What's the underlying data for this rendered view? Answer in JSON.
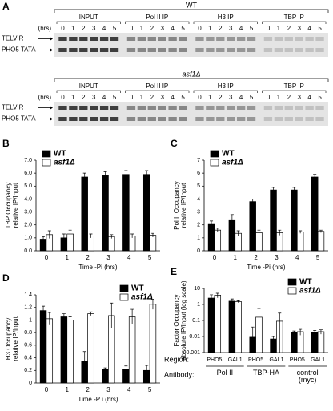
{
  "gels": {
    "panel": "A",
    "time_label": "(hrs)",
    "rows": [
      "TELVIR",
      "PHO5 TATA"
    ],
    "blots": [
      {
        "strain": "WT",
        "groups": [
          {
            "name": "INPUT",
            "lanes": [
              "0",
              "1",
              "2",
              "3",
              "4",
              "5"
            ]
          },
          {
            "name": "Pol II IP",
            "lanes": [
              "0",
              "1",
              "2",
              "3",
              "4",
              "5"
            ]
          },
          {
            "name": "H3 IP",
            "lanes": [
              "0",
              "1",
              "2",
              "3",
              "4",
              "5"
            ]
          },
          {
            "name": "TBP IP",
            "lanes": [
              "0",
              "1",
              "2",
              "3",
              "4",
              "5"
            ]
          }
        ]
      },
      {
        "strain": "asf1Δ",
        "groups": [
          {
            "name": "INPUT",
            "lanes": [
              "0",
              "1",
              "2",
              "3",
              "4",
              "5"
            ]
          },
          {
            "name": "Pol II IP",
            "lanes": [
              "0",
              "1",
              "2",
              "3",
              "4",
              "5"
            ]
          },
          {
            "name": "H3 IP",
            "lanes": [
              "0",
              "1",
              "2",
              "3",
              "4",
              "5"
            ]
          },
          {
            "name": "TBP IP",
            "lanes": [
              "0",
              "1",
              "2",
              "3",
              "4",
              "5"
            ]
          }
        ]
      }
    ]
  },
  "chart_data": [
    {
      "type": "bar",
      "panel": "B",
      "ylabel": [
        "TBP Occupancy",
        "relative IP/Input"
      ],
      "xlabel": "Time -Pi (hrs)",
      "categories": [
        "0",
        "1",
        "2",
        "3",
        "4",
        "5"
      ],
      "ylim": [
        0,
        7
      ],
      "yticks": [
        {
          "value": 0,
          "label": "0.0"
        },
        {
          "value": 1,
          "label": "1.0"
        },
        {
          "value": 2,
          "label": "2.0"
        },
        {
          "value": 3,
          "label": "3.0"
        },
        {
          "value": 4,
          "label": "4.0"
        },
        {
          "value": 5,
          "label": "5.0"
        },
        {
          "value": 6,
          "label": "6.0"
        },
        {
          "value": 7,
          "label": "7.0"
        }
      ],
      "legend": "upper left",
      "series": [
        {
          "name": "WT",
          "color": "#000000",
          "values": [
            0.9,
            1.0,
            5.7,
            5.8,
            5.9,
            5.9
          ],
          "errors": [
            0.2,
            0.3,
            0.3,
            0.3,
            0.3,
            0.3
          ]
        },
        {
          "name": "asf1Δ",
          "color": "#ffffff",
          "values": [
            1.25,
            1.3,
            1.15,
            1.1,
            1.15,
            1.2
          ],
          "errors": [
            0.3,
            0.3,
            0.15,
            0.15,
            0.15,
            0.15
          ]
        }
      ]
    },
    {
      "type": "bar",
      "panel": "C",
      "ylabel": [
        "Pol II Occupancy",
        "relative IP/Input"
      ],
      "xlabel": "Time -Pi (hrs)",
      "categories": [
        "0",
        "1",
        "2",
        "3",
        "4",
        "5"
      ],
      "ylim": [
        0,
        7
      ],
      "yticks": [
        0,
        1,
        2,
        3,
        4,
        5,
        6,
        7
      ],
      "legend": "upper left",
      "series": [
        {
          "name": "WT",
          "color": "#000000",
          "values": [
            2.1,
            2.4,
            3.8,
            4.7,
            4.7,
            5.7
          ],
          "errors": [
            0.2,
            0.4,
            0.2,
            0.2,
            0.2,
            0.2
          ]
        },
        {
          "name": "asf1Δ",
          "color": "#ffffff",
          "values": [
            1.6,
            1.35,
            1.4,
            1.4,
            1.45,
            1.5
          ],
          "errors": [
            0.15,
            0.2,
            0.2,
            0.2,
            0.1,
            0.1
          ]
        }
      ]
    },
    {
      "type": "bar",
      "panel": "D",
      "ylabel": [
        "H3 Occupancy",
        "relative IP/Input"
      ],
      "xlabel": "Time -P i (hrs)",
      "categories": [
        "0",
        "1",
        "2",
        "3",
        "4",
        "5"
      ],
      "ylim": [
        0,
        1.4
      ],
      "yticks": [
        0,
        0.2,
        0.4,
        0.6,
        0.8,
        1,
        1.2,
        1.4
      ],
      "legend": "upper right",
      "series": [
        {
          "name": "WT",
          "color": "#000000",
          "values": [
            1.15,
            1.05,
            0.35,
            0.22,
            0.22,
            0.2
          ],
          "errors": [
            0.07,
            0.05,
            0.15,
            0.02,
            0.05,
            0.08
          ]
        },
        {
          "name": "asf1Δ",
          "color": "#ffffff",
          "values": [
            1.02,
            1.0,
            1.1,
            1.07,
            1.05,
            1.25
          ],
          "errors": [
            0.1,
            0.05,
            0.03,
            0.2,
            0.12,
            0.08
          ]
        }
      ]
    },
    {
      "type": "bar",
      "panel": "E",
      "ylabel": [
        "Factor Occupancy",
        "absolute IP/Input (log scale)"
      ],
      "log": true,
      "region_label": "Region:",
      "antibody_label": "Antibody:",
      "categories": [
        "PHO5",
        "GAL1",
        "PHO5",
        "GAL1",
        "PHO5",
        "GAL1"
      ],
      "groups": [
        "Pol II",
        "TBP-HA",
        "control (myc)"
      ],
      "ylim": [
        0.001,
        10
      ],
      "yticks": [
        0.001,
        0.01,
        0.1,
        1,
        10
      ],
      "legend": "upper right",
      "series": [
        {
          "name": "WT",
          "color": "#000000",
          "values": [
            2.5,
            1.6,
            0.009,
            0.007,
            0.018,
            0.019
          ],
          "errors": [
            1.5,
            0.6,
            0.03,
            0.003,
            0.004,
            0.005
          ]
        },
        {
          "name": "asf1Δ",
          "color": "#ffffff",
          "values": [
            3.8,
            1.5,
            0.16,
            0.09,
            0.02,
            0.02
          ],
          "errors": [
            1.2,
            0.2,
            0.4,
            0.2,
            0.008,
            0.006
          ]
        }
      ]
    }
  ]
}
